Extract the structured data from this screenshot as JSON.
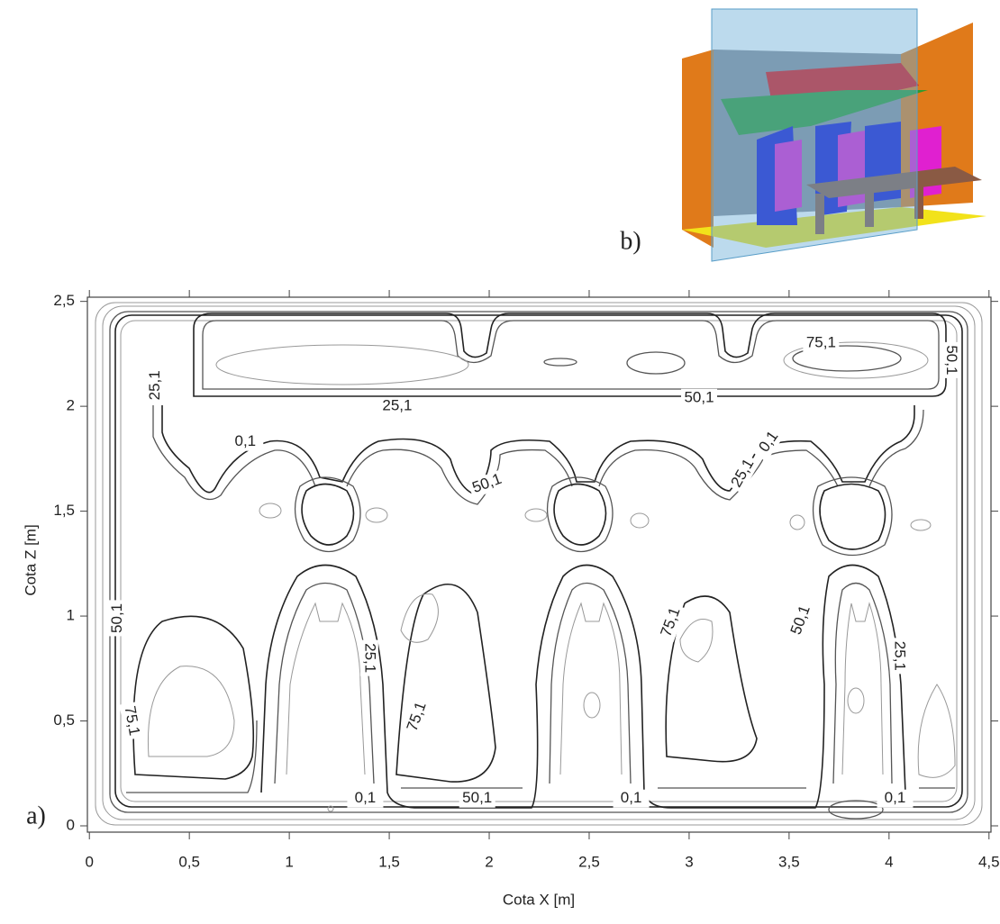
{
  "chart_data": {
    "type": "contour",
    "x_label": "Cota X [m]",
    "y_label": "Cota Z [m]",
    "xlim": [
      -0.01,
      4.51
    ],
    "ylim": [
      -0.03,
      2.52
    ],
    "xticks": [
      0,
      {
        "value": 0.5,
        "label": "0,5"
      },
      1,
      {
        "value": 1.5,
        "label": "1,5"
      },
      2,
      {
        "value": 2.5,
        "label": "2,5"
      },
      3,
      {
        "value": 3.5,
        "label": "3,5"
      },
      4,
      {
        "value": 4.5,
        "label": "4,5"
      }
    ],
    "yticks": [
      0,
      {
        "value": 0.5,
        "label": "0,5"
      },
      1,
      {
        "value": 1.5,
        "label": "1,5"
      },
      2,
      {
        "value": 2.5,
        "label": "2,5"
      }
    ],
    "contour_labels": [
      {
        "value": 25.1,
        "label": "25,1",
        "x": 0.33,
        "z": 2.1
      },
      {
        "value": 25.1,
        "label": "25,1",
        "x": 1.54,
        "z": 2.0
      },
      {
        "value": 0.1,
        "label": "0,1",
        "x": 0.78,
        "z": 1.83
      },
      {
        "value": 50.1,
        "label": "50,1",
        "x": 3.05,
        "z": 2.04
      },
      {
        "value": 75.1,
        "label": "75,1",
        "x": 3.66,
        "z": 2.3
      },
      {
        "value": 50.1,
        "label": "50,1",
        "x": 4.31,
        "z": 2.22
      },
      {
        "value": 0.1,
        "label": "0,1",
        "x": 3.4,
        "z": 1.83
      },
      {
        "value": 25.1,
        "label": "25,1",
        "x": 3.27,
        "z": 1.68
      },
      {
        "value": 50.1,
        "label": "50,1",
        "x": 1.99,
        "z": 1.63
      },
      {
        "value": 50.1,
        "label": "50,1",
        "x": 0.14,
        "z": 0.99
      },
      {
        "value": 25.1,
        "label": "25,1",
        "x": 1.4,
        "z": 0.8
      },
      {
        "value": 75.1,
        "label": "75,1",
        "x": 2.91,
        "z": 0.97
      },
      {
        "value": 50.1,
        "label": "50,1",
        "x": 3.56,
        "z": 0.98
      },
      {
        "value": 25.1,
        "label": "25,1",
        "x": 4.05,
        "z": 0.81
      },
      {
        "value": 75.1,
        "label": "75,1",
        "x": 1.64,
        "z": 0.52
      },
      {
        "value": 75.1,
        "label": "75,1",
        "x": 0.21,
        "z": 0.5
      },
      {
        "value": 0.1,
        "label": "0,1",
        "x": 1.38,
        "z": 0.13
      },
      {
        "value": 50.1,
        "label": "50,1",
        "x": 1.94,
        "z": 0.13
      },
      {
        "value": 0.1,
        "label": "0,1",
        "x": 2.71,
        "z": 0.13
      },
      {
        "value": 0.1,
        "label": "0,1",
        "x": 4.03,
        "z": 0.13
      }
    ],
    "panel_labels": [
      "a)",
      "b)"
    ]
  }
}
